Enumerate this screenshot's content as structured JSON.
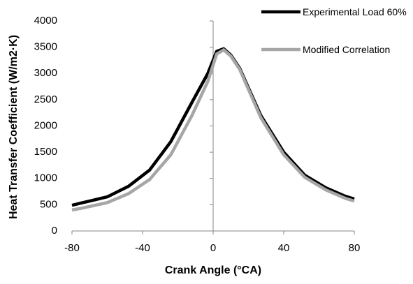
{
  "chart_data": {
    "type": "line",
    "x_label": "Crank Angle (°CA)",
    "y_label": "Heat Transfer Coefficient (W/m2·K)",
    "x": [
      -80,
      -75,
      -60,
      -48,
      -36,
      -24,
      -12,
      -3,
      2,
      6,
      10,
      15,
      27,
      40,
      52,
      64,
      75,
      80
    ],
    "series": [
      {
        "name": "Experimental Load 60%",
        "color": "#000000",
        "values": [
          490,
          530,
          650,
          850,
          1160,
          1700,
          2450,
          3000,
          3420,
          3470,
          3350,
          3100,
          2200,
          1500,
          1060,
          820,
          660,
          610
        ]
      },
      {
        "name": "Modified Correlation",
        "color": "#a6a6a6",
        "values": [
          400,
          430,
          540,
          710,
          980,
          1450,
          2200,
          2850,
          3370,
          3450,
          3330,
          3080,
          2160,
          1450,
          1020,
          780,
          620,
          570
        ]
      }
    ],
    "xlim": [
      -80,
      80
    ],
    "xticks": [
      -80,
      -40,
      0,
      40,
      80
    ],
    "ylim": [
      0,
      4000
    ],
    "yticks": [
      0,
      500,
      1000,
      1500,
      2000,
      2500,
      3000,
      3500,
      4000
    ],
    "grid": false,
    "legend": "top-right"
  }
}
